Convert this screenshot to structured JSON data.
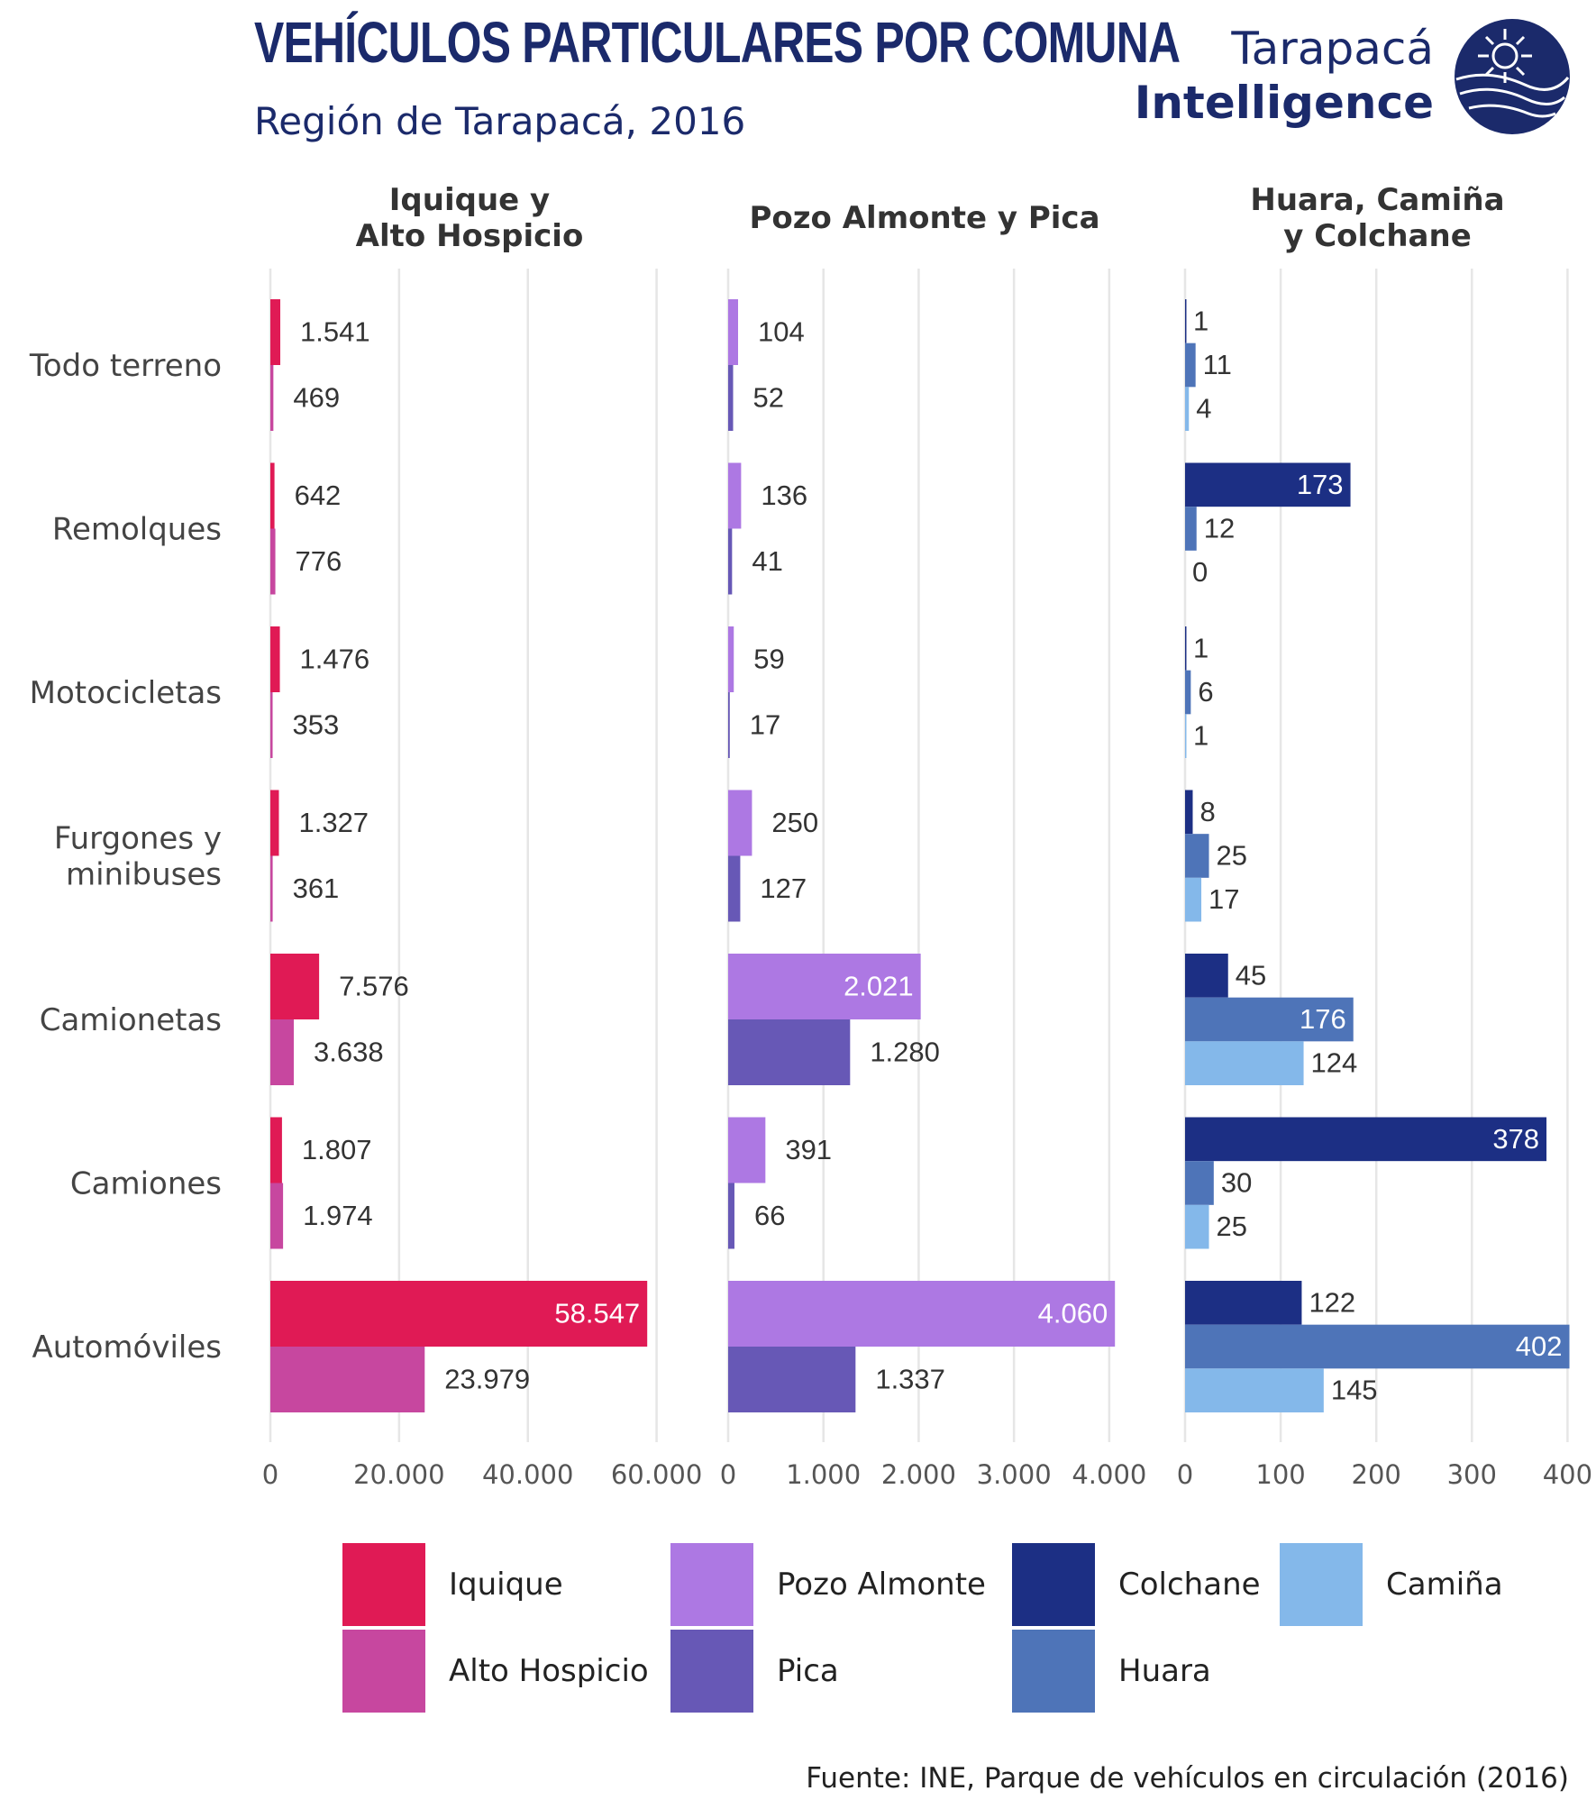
{
  "header": {
    "title": "VEHÍCULOS PARTICULARES POR COMUNA",
    "subtitle": "Región de Tarapacá, 2016"
  },
  "logo": {
    "line1": "Tarapacá",
    "line2": "Intelligence",
    "icon": "globe-sun-icon"
  },
  "source": "Fuente: INE, Parque de vehículos en circulación (2016)",
  "colors": {
    "Iquique": "#e01a55",
    "Alto Hospicio": "#c7479f",
    "Pozo Almonte": "#ad78e3",
    "Pica": "#6758b6",
    "Colchane": "#1c2f84",
    "Huara": "#4e74b8",
    "Camiña": "#84b8ea",
    "brand": "#1b2a6b"
  },
  "chart_data": {
    "type": "bar",
    "orientation": "horizontal",
    "categories": [
      "Todo terreno",
      "Remolques",
      "Motocicletas",
      "Furgones y minibuses",
      "Camionetas",
      "Camiones",
      "Automóviles"
    ],
    "category_labels": [
      [
        "Todo terreno"
      ],
      [
        "Remolques"
      ],
      [
        "Motocicletas"
      ],
      [
        "Furgones y",
        "minibuses"
      ],
      [
        "Camionetas"
      ],
      [
        "Camiones"
      ],
      [
        "Automóviles"
      ]
    ],
    "legend_position": "bottom",
    "grid": true,
    "panels": [
      {
        "title_lines": [
          "Iquique y",
          "Alto Hospicio"
        ],
        "xlim": [
          0,
          63000
        ],
        "ticks": [
          0,
          20000,
          40000,
          60000
        ],
        "tick_labels": [
          "0",
          "20.000",
          "40.000",
          "60.000"
        ],
        "series": [
          {
            "name": "Iquique",
            "values": [
              1541,
              642,
              1476,
              1327,
              7576,
              1807,
              58547
            ],
            "labels": [
              "1.541",
              "642",
              "1.476",
              "1.327",
              "7.576",
              "1.807",
              "58.547"
            ]
          },
          {
            "name": "Alto Hospicio",
            "values": [
              469,
              776,
              353,
              361,
              3638,
              1974,
              23979
            ],
            "labels": [
              "469",
              "776",
              "353",
              "361",
              "3.638",
              "1.974",
              "23.979"
            ]
          }
        ]
      },
      {
        "title_lines": [
          "Pozo Almonte y Pica"
        ],
        "xlim": [
          0,
          4200
        ],
        "ticks": [
          0,
          1000,
          2000,
          3000,
          4000
        ],
        "tick_labels": [
          "0",
          "1.000",
          "2.000",
          "3.000",
          "4.000"
        ],
        "series": [
          {
            "name": "Pozo Almonte",
            "values": [
              104,
              136,
              59,
              250,
              2021,
              391,
              4060
            ],
            "labels": [
              "104",
              "136",
              "59",
              "250",
              "2.021",
              "391",
              "4.060"
            ]
          },
          {
            "name": "Pica",
            "values": [
              52,
              41,
              17,
              127,
              1280,
              66,
              1337
            ],
            "labels": [
              "52",
              "41",
              "17",
              "127",
              "1.280",
              "66",
              "1.337"
            ]
          }
        ]
      },
      {
        "title_lines": [
          "Huara, Camiña",
          "y Colchane"
        ],
        "xlim": [
          0,
          410
        ],
        "ticks": [
          0,
          100,
          200,
          300,
          400
        ],
        "tick_labels": [
          "0",
          "100",
          "200",
          "300",
          "400"
        ],
        "series": [
          {
            "name": "Colchane",
            "values": [
              1,
              173,
              1,
              8,
              45,
              378,
              122
            ],
            "labels": [
              "1",
              "173",
              "1",
              "8",
              "45",
              "378",
              "122"
            ]
          },
          {
            "name": "Huara",
            "values": [
              11,
              12,
              6,
              25,
              176,
              30,
              402
            ],
            "labels": [
              "11",
              "12",
              "6",
              "25",
              "176",
              "30",
              "402"
            ]
          },
          {
            "name": "Camiña",
            "values": [
              4,
              0,
              1,
              17,
              124,
              25,
              145
            ],
            "labels": [
              "4",
              "0",
              "1",
              "17",
              "124",
              "25",
              "145"
            ]
          }
        ]
      }
    ]
  }
}
